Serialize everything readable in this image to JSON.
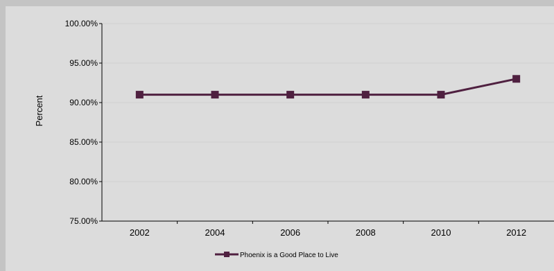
{
  "chart_data": {
    "type": "line",
    "title": "",
    "xlabel": "",
    "ylabel": "Percent",
    "categories": [
      "2002",
      "2004",
      "2006",
      "2008",
      "2010",
      "2012"
    ],
    "y_tick_labels": [
      "100.00%",
      "95.00%",
      "90.00%",
      "85.00%",
      "80.00%",
      "75.00%"
    ],
    "ylim": [
      75,
      100
    ],
    "y_ticks": [
      75,
      80,
      85,
      90,
      95,
      100
    ],
    "grid": true,
    "legend_position": "bottom",
    "series": [
      {
        "name": "Phoenix is a Good Place to Live",
        "values": [
          91,
          91,
          91,
          91,
          91,
          93
        ],
        "color": "#4f2040",
        "marker": "square"
      }
    ]
  }
}
